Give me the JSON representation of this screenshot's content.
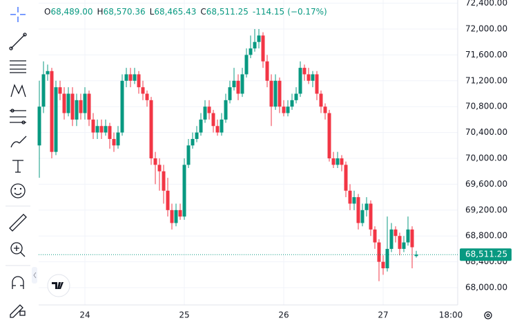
{
  "chart_data": {
    "type": "candlestick",
    "header": [
      {
        "key": "O",
        "value": 68489,
        "label": "68,489.00"
      },
      {
        "key": "H",
        "value": 68570.36,
        "label": "68,570.36"
      },
      {
        "key": "L",
        "value": 68465.43,
        "label": "68,465.43"
      },
      {
        "key": "C",
        "value": 68511.25,
        "label": "68,511.25"
      }
    ],
    "change": {
      "value": -114.15,
      "label": "-114.15"
    },
    "change_percent": {
      "value": -0.17,
      "label": "(−0.17%)"
    },
    "last_price": {
      "value": 68511.25,
      "label": "68,511.25"
    },
    "up_color": "#089981",
    "down_color": "#f23645",
    "grid": true,
    "categories": [
      null,
      null,
      null,
      null,
      null,
      null,
      null,
      null,
      null,
      null,
      null,
      "24",
      null,
      null,
      null,
      null,
      null,
      null,
      null,
      null,
      null,
      null,
      null,
      null,
      null,
      null,
      null,
      null,
      null,
      null,
      null,
      null,
      null,
      null,
      null,
      "25",
      null,
      null,
      null,
      null,
      null,
      null,
      null,
      null,
      null,
      null,
      null,
      null,
      null,
      null,
      null,
      null,
      null,
      null,
      null,
      null,
      null,
      null,
      null,
      "26",
      null,
      null,
      null,
      null,
      null,
      null,
      null,
      null,
      null,
      null,
      null,
      null,
      null,
      null,
      null,
      null,
      null,
      null,
      null,
      null,
      null,
      null,
      null,
      "27",
      null,
      null,
      null,
      null,
      null,
      null,
      null,
      null,
      null,
      null,
      null,
      null,
      null,
      null,
      null,
      null,
      null,
      "18:00"
    ],
    "open": [
      70200,
      70800,
      71300,
      71350,
      70100,
      71100,
      71000,
      70700,
      71000,
      70600,
      70900,
      70700,
      71000,
      70600,
      70400,
      70500,
      70400,
      70500,
      70300,
      70200,
      70400,
      71200,
      71300,
      71200,
      71300,
      71100,
      71000,
      70900,
      70000,
      69900,
      69800,
      69500,
      69200,
      69000,
      69200,
      69100,
      69900,
      70200,
      70300,
      70400,
      70600,
      70800,
      70700,
      70500,
      70400,
      70600,
      70900,
      71100,
      71200,
      71000,
      71300,
      71600,
      71700,
      71800,
      71900,
      71500,
      71200,
      70800,
      71200,
      70800,
      70700,
      70800,
      70900,
      71000,
      71400,
      71300,
      71200,
      71300,
      71000,
      70800,
      70700,
      70000,
      69900,
      70000,
      69900,
      69500,
      69300,
      69400,
      69000,
      69200,
      69300,
      68900,
      68700,
      68400,
      68300,
      68600,
      68900,
      68800,
      68600,
      68700,
      68900,
      68489,
      null,
      null,
      null,
      null,
      null,
      null,
      null,
      null,
      null,
      null
    ],
    "high": [
      71200,
      71500,
      71450,
      71400,
      71200,
      71200,
      71100,
      71100,
      71100,
      71000,
      71000,
      71100,
      71050,
      70700,
      70600,
      70600,
      70600,
      70550,
      70400,
      70500,
      71300,
      71400,
      71400,
      71400,
      71350,
      71200,
      71050,
      70950,
      70100,
      70000,
      69900,
      69700,
      69300,
      69300,
      69300,
      70000,
      70300,
      70400,
      70500,
      70700,
      70900,
      70900,
      70750,
      70600,
      70700,
      71000,
      71200,
      71400,
      71300,
      71400,
      71700,
      71900,
      72000,
      72000,
      71950,
      71600,
      71300,
      71300,
      71250,
      70900,
      70900,
      71000,
      71100,
      71500,
      71450,
      71400,
      71350,
      71350,
      71050,
      70850,
      70750,
      70100,
      70100,
      70050,
      69950,
      69600,
      69500,
      69450,
      69300,
      69400,
      69350,
      68950,
      68750,
      68500,
      69100,
      69000,
      68950,
      68850,
      68800,
      69100,
      68950,
      68570.36,
      null,
      null,
      null,
      null,
      null,
      null,
      null,
      null,
      null,
      null
    ],
    "low": [
      69700,
      70700,
      71200,
      70000,
      70050,
      70900,
      70600,
      70650,
      70500,
      70500,
      70600,
      70600,
      70500,
      70300,
      70300,
      70300,
      70350,
      70150,
      70100,
      70150,
      70350,
      71100,
      71100,
      71150,
      71000,
      70900,
      70800,
      69900,
      69600,
      69500,
      69300,
      69100,
      68900,
      68950,
      69050,
      69050,
      69850,
      70150,
      70250,
      70350,
      70550,
      70600,
      70400,
      70350,
      70350,
      70550,
      70850,
      71050,
      70900,
      70950,
      71250,
      71550,
      71650,
      71700,
      71400,
      71100,
      70500,
      70750,
      70700,
      70650,
      70650,
      70750,
      70850,
      70950,
      71200,
      71150,
      71100,
      70900,
      70700,
      70600,
      69950,
      69850,
      69850,
      69800,
      69400,
      69200,
      69200,
      68900,
      68950,
      69100,
      68800,
      68600,
      68100,
      68200,
      68250,
      68550,
      68700,
      68500,
      68550,
      68650,
      68300,
      68465.43,
      null,
      null,
      null,
      null,
      null,
      null,
      null,
      null,
      null,
      null
    ],
    "close": [
      70800,
      71300,
      71350,
      70100,
      71100,
      71000,
      70700,
      71000,
      70600,
      70900,
      70700,
      71000,
      70600,
      70400,
      70500,
      70400,
      70500,
      70300,
      70200,
      70400,
      71200,
      71300,
      71200,
      71300,
      71100,
      71000,
      70900,
      70000,
      69900,
      69800,
      69500,
      69200,
      69000,
      69200,
      69100,
      69900,
      70200,
      70300,
      70400,
      70600,
      70800,
      70700,
      70500,
      70400,
      70600,
      70900,
      71100,
      71200,
      71000,
      71300,
      71600,
      71700,
      71800,
      71900,
      71500,
      71200,
      70800,
      71200,
      70800,
      70700,
      70800,
      70900,
      71000,
      71400,
      71300,
      71200,
      71300,
      71000,
      70800,
      70700,
      70000,
      69900,
      70000,
      69900,
      69500,
      69300,
      69400,
      69000,
      69200,
      69300,
      68900,
      68700,
      68400,
      68300,
      68600,
      68900,
      68800,
      68600,
      68700,
      68900,
      68625.4,
      68511.25,
      null,
      null,
      null,
      null,
      null,
      null,
      null,
      null,
      null,
      null
    ],
    "ylim": [
      67733,
      72449
    ],
    "yticks": [
      {
        "value": 68000,
        "label": "68,000.00"
      },
      {
        "value": 68400,
        "label": "68,400.00"
      },
      {
        "value": 68800,
        "label": "68,800.00"
      },
      {
        "value": 69200,
        "label": "69,200.00"
      },
      {
        "value": 69600,
        "label": "69,600.00"
      },
      {
        "value": 70000,
        "label": "70,000.00"
      },
      {
        "value": 70400,
        "label": "70,400.00"
      },
      {
        "value": 70800,
        "label": "70,800.00"
      },
      {
        "value": 71200,
        "label": "71,200.00"
      },
      {
        "value": 71600,
        "label": "71,600.00"
      },
      {
        "value": 72000,
        "label": "72,000.00"
      },
      {
        "value": 72400,
        "label": "72,400.00"
      }
    ]
  }
}
